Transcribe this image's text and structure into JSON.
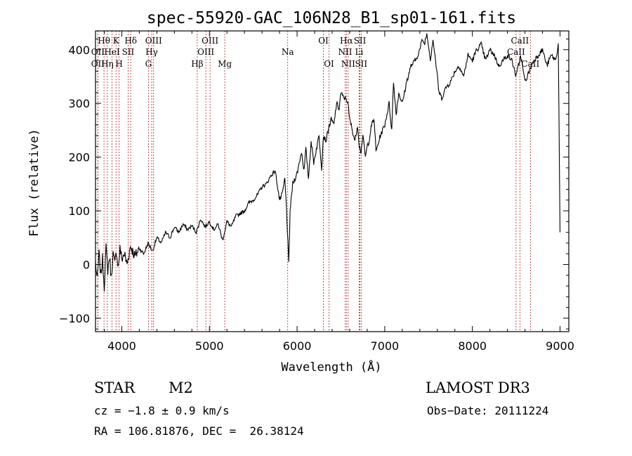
{
  "chart_data": {
    "type": "line",
    "title": "spec-55920-GAC_106N28_B1_sp01-161.fits",
    "xlabel": "Wavelength (Å)",
    "ylabel": "Flux (relative)",
    "xlim": [
      3700,
      9100
    ],
    "ylim": [
      -125,
      435
    ],
    "xticks": [
      4000,
      5000,
      6000,
      7000,
      8000,
      9000
    ],
    "yticks": [
      -100,
      0,
      100,
      200,
      300,
      400
    ],
    "grid": false,
    "series": [
      {
        "name": "flux",
        "x": [
          3700,
          3720,
          3740,
          3760,
          3780,
          3800,
          3820,
          3840,
          3860,
          3880,
          3900,
          3920,
          3940,
          3960,
          3980,
          4000,
          4030,
          4060,
          4100,
          4150,
          4200,
          4250,
          4300,
          4350,
          4400,
          4450,
          4500,
          4550,
          4600,
          4650,
          4700,
          4750,
          4800,
          4850,
          4900,
          4950,
          5000,
          5050,
          5100,
          5150,
          5200,
          5250,
          5300,
          5350,
          5400,
          5450,
          5500,
          5550,
          5600,
          5650,
          5700,
          5750,
          5800,
          5830,
          5860,
          5880,
          5895,
          5905,
          5920,
          5950,
          6000,
          6050,
          6080,
          6100,
          6130,
          6160,
          6190,
          6220,
          6250,
          6280,
          6300,
          6330,
          6360,
          6390,
          6420,
          6450,
          6480,
          6500,
          6530,
          6560,
          6580,
          6600,
          6630,
          6660,
          6690,
          6710,
          6730,
          6750,
          6780,
          6800,
          6820,
          6850,
          6880,
          6900,
          6950,
          7000,
          7050,
          7080,
          7100,
          7130,
          7160,
          7200,
          7250,
          7300,
          7350,
          7400,
          7430,
          7450,
          7480,
          7500,
          7520,
          7550,
          7580,
          7600,
          7620,
          7650,
          7700,
          7750,
          7800,
          7850,
          7900,
          7950,
          8000,
          8050,
          8100,
          8150,
          8200,
          8250,
          8300,
          8350,
          8400,
          8450,
          8500,
          8550,
          8600,
          8650,
          8700,
          8750,
          8800,
          8850,
          8900,
          8950,
          8980,
          9000
        ],
        "values": [
          5,
          -30,
          20,
          -20,
          10,
          -40,
          30,
          -10,
          15,
          -25,
          20,
          0,
          25,
          -5,
          30,
          10,
          20,
          0,
          35,
          15,
          30,
          20,
          40,
          25,
          50,
          40,
          60,
          50,
          70,
          60,
          75,
          65,
          72,
          60,
          85,
          70,
          80,
          65,
          75,
          45,
          80,
          70,
          90,
          95,
          100,
          115,
          120,
          130,
          145,
          150,
          165,
          175,
          120,
          130,
          160,
          100,
          40,
          0,
          100,
          150,
          170,
          210,
          175,
          215,
          160,
          230,
          190,
          215,
          240,
          180,
          240,
          230,
          255,
          270,
          260,
          300,
          290,
          320,
          310,
          310,
          300,
          270,
          250,
          230,
          260,
          220,
          210,
          240,
          200,
          220,
          230,
          260,
          270,
          210,
          240,
          260,
          300,
          250,
          340,
          280,
          320,
          300,
          340,
          370,
          380,
          400,
          420,
          410,
          430,
          410,
          380,
          420,
          380,
          350,
          320,
          310,
          330,
          340,
          360,
          370,
          350,
          390,
          380,
          400,
          410,
          380,
          400,
          390,
          370,
          380,
          390,
          380,
          350,
          390,
          340,
          360,
          380,
          390,
          400,
          370,
          390,
          380,
          410,
          60
        ]
      }
    ],
    "lines": [
      {
        "name": "Hθ",
        "x": 3797,
        "row": 1
      },
      {
        "name": "OII",
        "x": 3727,
        "row": 2
      },
      {
        "name": "OII",
        "x": 3727,
        "row": 3
      },
      {
        "name": "Hη",
        "x": 3835,
        "row": 3
      },
      {
        "name": "K",
        "x": 3934,
        "row": 1
      },
      {
        "name": "HeI",
        "x": 3889,
        "row": 2
      },
      {
        "name": "H",
        "x": 3969,
        "row": 3
      },
      {
        "name": "Hδ",
        "x": 4102,
        "row": 1
      },
      {
        "name": "SII",
        "x": 4072,
        "row": 2
      },
      {
        "name": "OIII",
        "x": 4363,
        "row": 1
      },
      {
        "name": "Hγ",
        "x": 4341,
        "row": 2
      },
      {
        "name": "G",
        "x": 4304,
        "row": 3
      },
      {
        "name": "Hβ",
        "x": 4861,
        "row": 3
      },
      {
        "name": "OIII",
        "x": 5007,
        "row": 1
      },
      {
        "name": "OIII",
        "x": 4959,
        "row": 2
      },
      {
        "name": "Mg",
        "x": 5175,
        "row": 3
      },
      {
        "name": "Na",
        "x": 5893,
        "row": 2
      },
      {
        "name": "OI",
        "x": 6300,
        "row": 1
      },
      {
        "name": "OI",
        "x": 6364,
        "row": 3
      },
      {
        "name": "Hα",
        "x": 6563,
        "row": 1
      },
      {
        "name": "NII",
        "x": 6548,
        "row": 2
      },
      {
        "name": "NII",
        "x": 6583,
        "row": 3
      },
      {
        "name": "SII",
        "x": 6717,
        "row": 1
      },
      {
        "name": "Li",
        "x": 6708,
        "row": 2
      },
      {
        "name": "SII",
        "x": 6731,
        "row": 3
      },
      {
        "name": "CaII",
        "x": 8542,
        "row": 1
      },
      {
        "name": "CaII",
        "x": 8498,
        "row": 2
      },
      {
        "name": "CaII",
        "x": 8662,
        "row": 3
      }
    ]
  },
  "info": {
    "object_class": "STAR",
    "subclass": "M2",
    "survey": "LAMOST DR3",
    "cz": "cz = −1.8 ± 0.9 km/s",
    "obs_date": "Obs−Date: 20111224",
    "coords": "RA = 106.81876, DEC =  26.38124"
  }
}
